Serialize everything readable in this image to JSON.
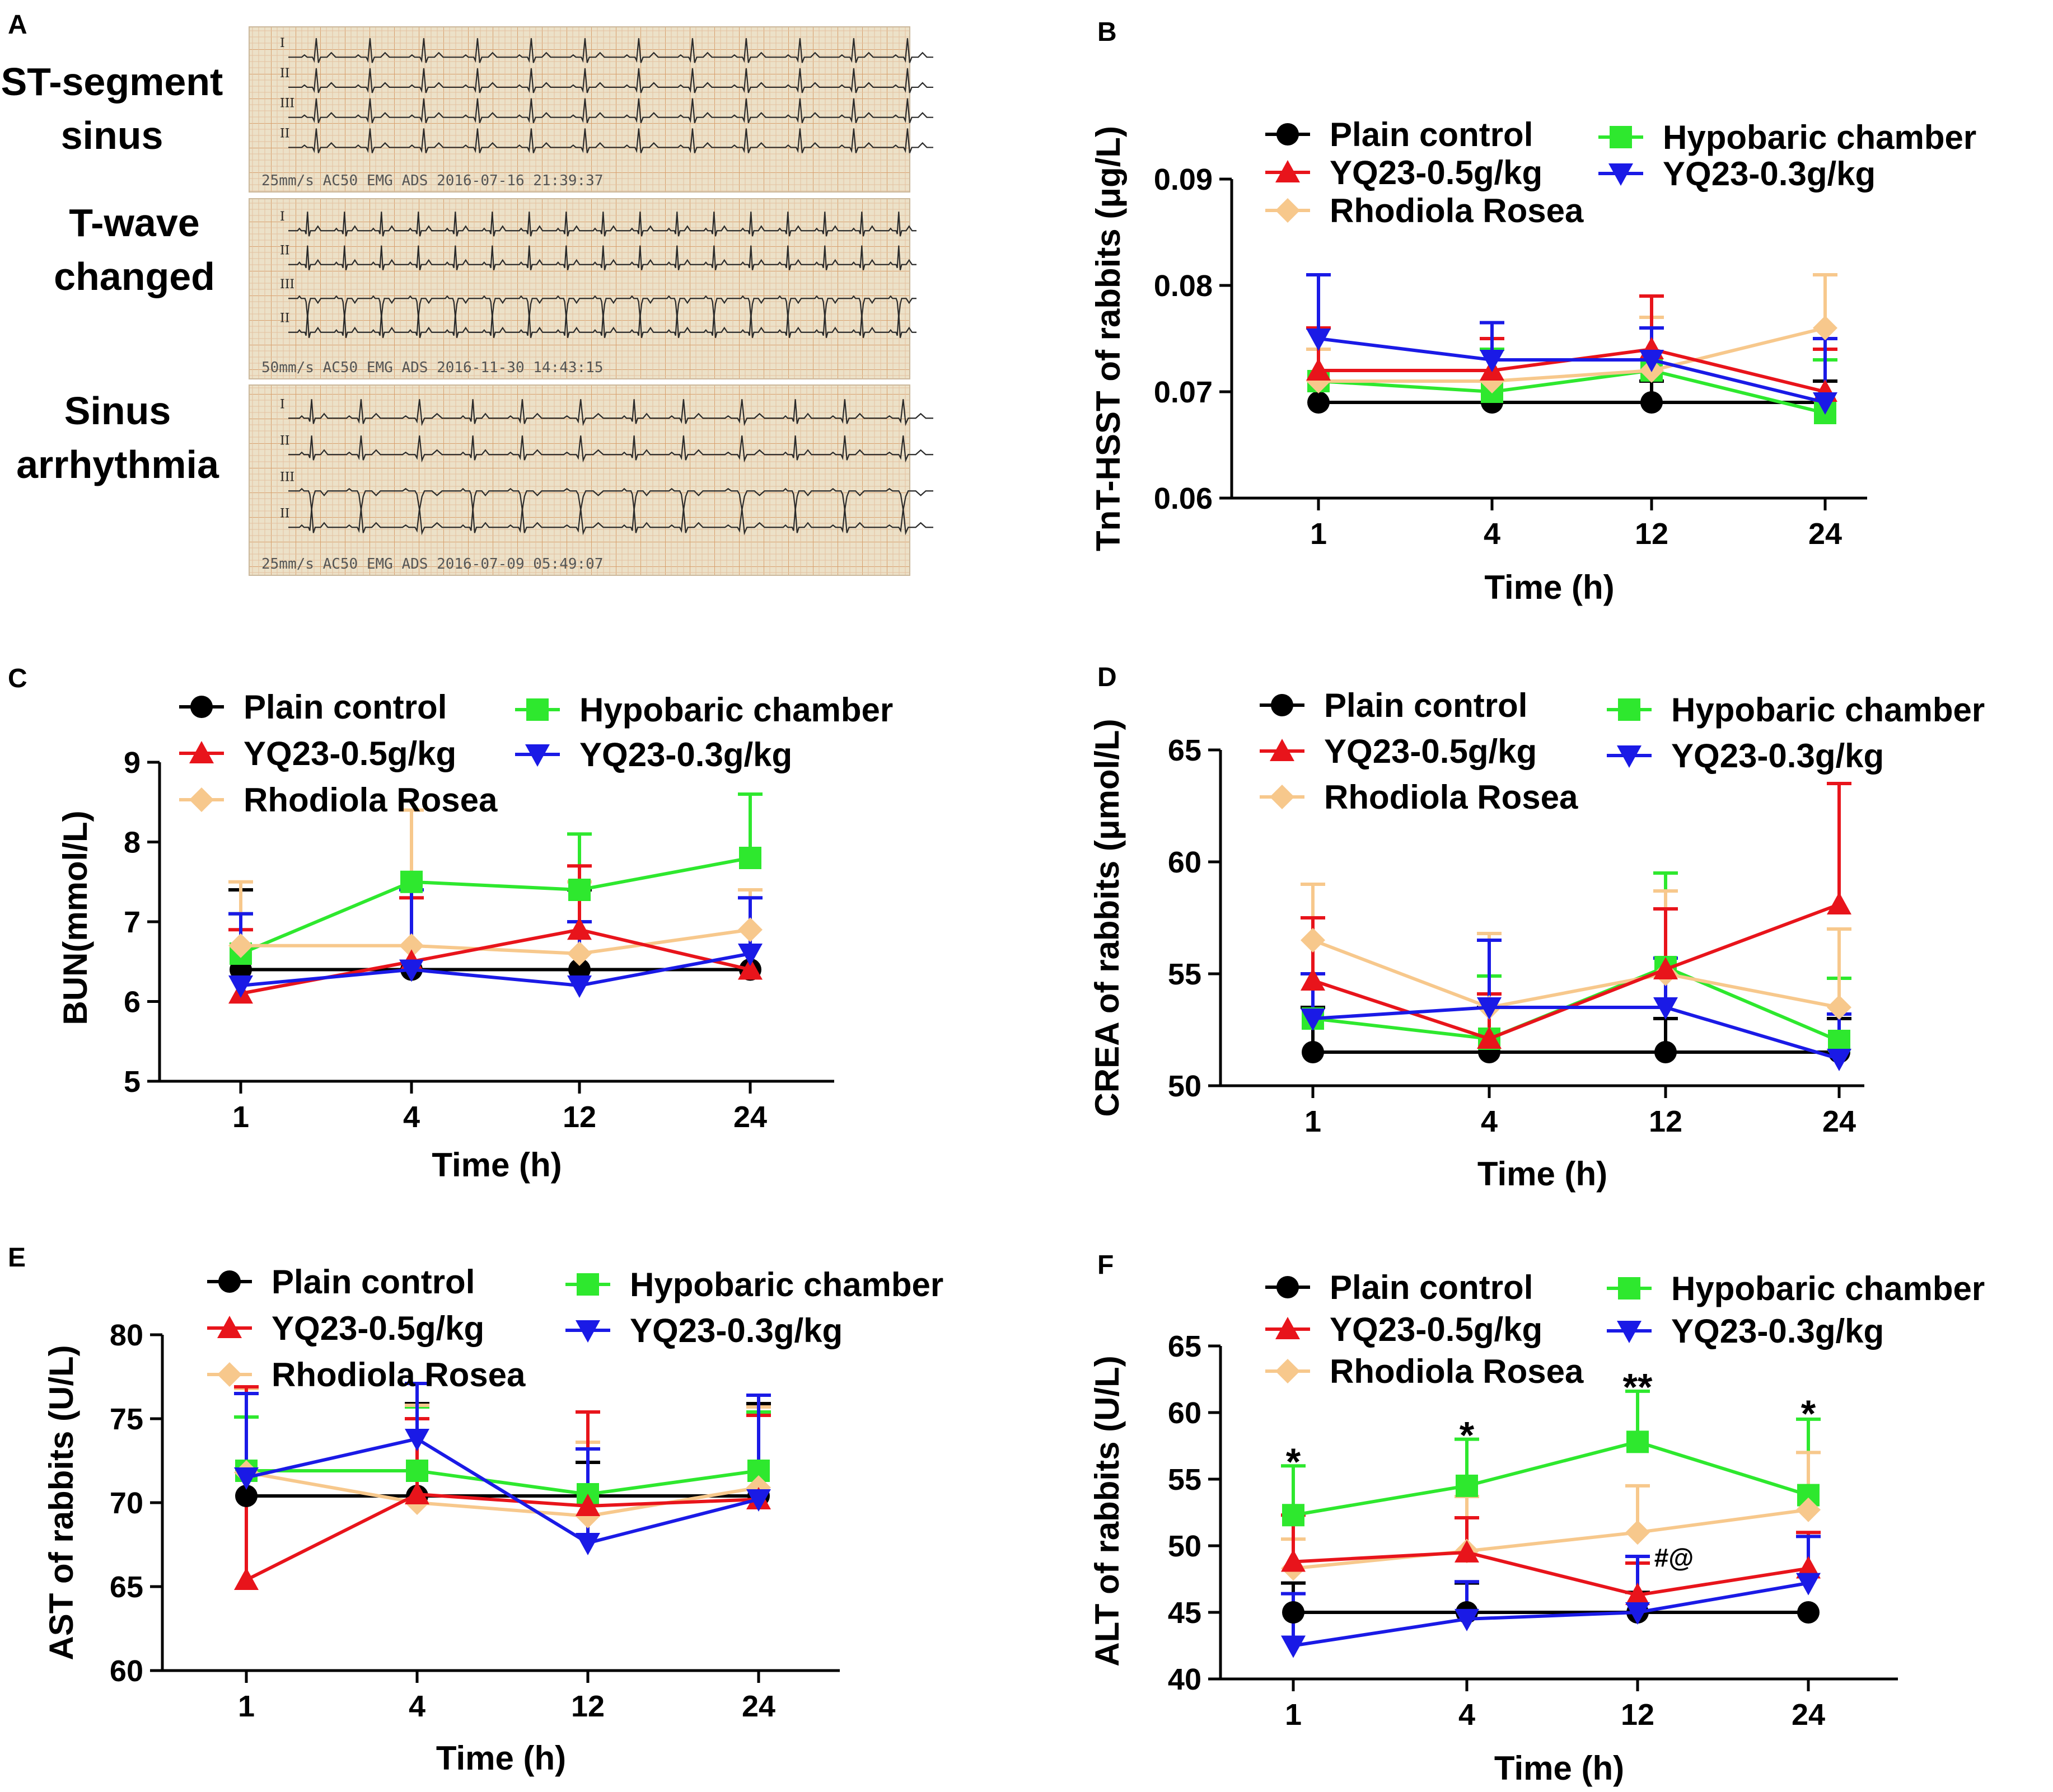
{
  "panels": {
    "A": {
      "label": "A",
      "strips": [
        {
          "label_lines": [
            "ST-segment",
            "sinus"
          ],
          "footer": "25mm/s    AC50  EMG  ADS      2016-07-16 21:39:37"
        },
        {
          "label_lines": [
            "T-wave",
            "changed"
          ],
          "footer": "50mm/s    AC50  EMG  ADS      2016-11-30 14:43:15"
        },
        {
          "label_lines": [
            "Sinus",
            "arrhythmia"
          ],
          "footer": "25mm/s    AC50  EMG  ADS      2016-07-09 05:49:07"
        }
      ],
      "lead_labels": [
        "I",
        "II",
        "III",
        "II"
      ]
    }
  },
  "colors": {
    "Plain control": "#000000",
    "YQ23-0.5g/kg": "#e8141b",
    "Rhodiola Rosea": "#f7c88c",
    "Hypobaric chamber": "#2ee82e",
    "YQ23-0.3g/kg": "#1a1ae6"
  },
  "chart_data": [
    {
      "panel": "B",
      "type": "line",
      "x": [
        "1",
        "4",
        "12",
        "24"
      ],
      "xlabel": "Time (h)",
      "ylabel": "TnT-HSST of rabbits (μg/L)",
      "ylim": [
        0.06,
        0.09
      ],
      "yticks": [
        "0.06",
        "0.07",
        "0.08",
        "0.09"
      ],
      "legend": [
        "Plain control",
        "YQ23-0.5g/kg",
        "Rhodiola Rosea",
        "Hypobaric chamber",
        "YQ23-0.3g/kg"
      ],
      "series": [
        {
          "name": "Plain control",
          "values": [
            0.069,
            0.069,
            0.069,
            0.069
          ],
          "err": [
            0,
            0,
            0.002,
            0.002
          ]
        },
        {
          "name": "YQ23-0.5g/kg",
          "values": [
            0.072,
            0.072,
            0.074,
            0.07
          ],
          "err": [
            0.004,
            0.003,
            0.005,
            0.004
          ]
        },
        {
          "name": "Rhodiola Rosea",
          "values": [
            0.071,
            0.071,
            0.072,
            0.076
          ],
          "err": [
            0.003,
            0.004,
            0.005,
            0.005
          ]
        },
        {
          "name": "Hypobaric chamber",
          "values": [
            0.071,
            0.07,
            0.072,
            0.068
          ],
          "err": [
            0.003,
            0.004,
            0.004,
            0.005
          ]
        },
        {
          "name": "YQ23-0.3g/kg",
          "values": [
            0.075,
            0.073,
            0.073,
            0.069
          ],
          "err": [
            0.006,
            0.0035,
            0.003,
            0.006
          ]
        }
      ],
      "annotations": []
    },
    {
      "panel": "C",
      "type": "line",
      "x": [
        "1",
        "4",
        "12",
        "24"
      ],
      "xlabel": "Time (h)",
      "ylabel": "BUN(mmol/L)",
      "ylim": [
        5,
        9
      ],
      "yticks": [
        "5",
        "6",
        "7",
        "8",
        "9"
      ],
      "legend": [
        "Plain control",
        "YQ23-0.5g/kg",
        "Rhodiola Rosea",
        "Hypobaric chamber",
        "YQ23-0.3g/kg"
      ],
      "series": [
        {
          "name": "Plain control",
          "values": [
            6.4,
            6.4,
            6.4,
            6.4
          ],
          "err": [
            1.0,
            1.0,
            1.0,
            0
          ]
        },
        {
          "name": "YQ23-0.5g/kg",
          "values": [
            6.1,
            6.5,
            6.9,
            6.4
          ],
          "err": [
            0.8,
            0.8,
            0.8,
            0
          ]
        },
        {
          "name": "Rhodiola Rosea",
          "values": [
            6.7,
            6.7,
            6.6,
            6.9
          ],
          "err": [
            0.8,
            1.7,
            0.9,
            0.5
          ]
        },
        {
          "name": "Hypobaric chamber",
          "values": [
            6.6,
            7.5,
            7.4,
            7.8
          ],
          "err": [
            0.5,
            0.9,
            0.7,
            0.8
          ]
        },
        {
          "name": "YQ23-0.3g/kg",
          "values": [
            6.2,
            6.4,
            6.2,
            6.6
          ],
          "err": [
            0.9,
            1.0,
            0.8,
            0.7
          ]
        }
      ],
      "annotations": []
    },
    {
      "panel": "D",
      "type": "line",
      "x": [
        "1",
        "4",
        "12",
        "24"
      ],
      "xlabel": "Time (h)",
      "ylabel": "CREA of rabbits (μmol/L)",
      "ylim": [
        50,
        65
      ],
      "yticks": [
        "50",
        "55",
        "60",
        "65"
      ],
      "legend": [
        "Plain control",
        "YQ23-0.5g/kg",
        "Rhodiola Rosea",
        "Hypobaric chamber",
        "YQ23-0.3g/kg"
      ],
      "series": [
        {
          "name": "Plain control",
          "values": [
            51.5,
            51.5,
            51.5,
            51.5
          ],
          "err": [
            2.0,
            2.0,
            1.5,
            1.5
          ]
        },
        {
          "name": "YQ23-0.5g/kg",
          "values": [
            54.7,
            52.1,
            55.2,
            58.1
          ],
          "err": [
            2.8,
            2.0,
            2.7,
            5.4
          ]
        },
        {
          "name": "Rhodiola Rosea",
          "values": [
            56.5,
            53.5,
            55.0,
            53.5
          ],
          "err": [
            2.5,
            3.3,
            3.7,
            3.5
          ]
        },
        {
          "name": "Hypobaric chamber",
          "values": [
            53.0,
            52.1,
            55.3,
            52.0
          ],
          "err": [
            2.0,
            2.8,
            4.2,
            2.8
          ]
        },
        {
          "name": "YQ23-0.3g/kg",
          "values": [
            53.0,
            53.5,
            53.5,
            51.2
          ],
          "err": [
            2.0,
            3.0,
            2.2,
            2.0
          ]
        }
      ],
      "annotations": []
    },
    {
      "panel": "E",
      "type": "line",
      "x": [
        "1",
        "4",
        "12",
        "24"
      ],
      "xlabel": "Time (h)",
      "ylabel": "AST of rabbits (U/L)",
      "ylim": [
        60,
        80
      ],
      "yticks": [
        "60",
        "65",
        "70",
        "75",
        "80"
      ],
      "legend": [
        "Plain control",
        "YQ23-0.5g/kg",
        "Rhodiola Rosea",
        "Hypobaric chamber",
        "YQ23-0.3g/kg"
      ],
      "series": [
        {
          "name": "Plain control",
          "values": [
            70.4,
            70.4,
            70.4,
            70.4
          ],
          "err": [
            6.5,
            5.5,
            2.0,
            5.5
          ]
        },
        {
          "name": "YQ23-0.5g/kg",
          "values": [
            65.4,
            70.5,
            69.8,
            70.2
          ],
          "err": [
            11.5,
            4.5,
            5.6,
            5.0
          ]
        },
        {
          "name": "Rhodiola Rosea",
          "values": [
            71.8,
            70.0,
            69.2,
            70.9
          ],
          "err": [
            5.0,
            5.8,
            4.4,
            4.8
          ]
        },
        {
          "name": "Hypobaric chamber",
          "values": [
            71.9,
            71.9,
            70.5,
            71.9
          ],
          "err": [
            3.2,
            3.8,
            3.1,
            3.5
          ]
        },
        {
          "name": "YQ23-0.3g/kg",
          "values": [
            71.5,
            73.8,
            67.6,
            70.2
          ],
          "err": [
            5.0,
            3.3,
            5.6,
            6.2
          ]
        }
      ],
      "annotations": []
    },
    {
      "panel": "F",
      "type": "line",
      "x": [
        "1",
        "4",
        "12",
        "24"
      ],
      "xlabel": "Time (h)",
      "ylabel": "ALT of rabbits (U/L)",
      "ylim": [
        40,
        65
      ],
      "yticks": [
        "40",
        "45",
        "50",
        "55",
        "60",
        "65"
      ],
      "legend": [
        "Plain control",
        "YQ23-0.5g/kg",
        "Rhodiola Rosea",
        "Hypobaric chamber",
        "YQ23-0.3g/kg"
      ],
      "series": [
        {
          "name": "Plain control",
          "values": [
            45.0,
            45.0,
            45.0,
            45.0
          ],
          "err": [
            2.2,
            2.2,
            1.5,
            0
          ]
        },
        {
          "name": "YQ23-0.5g/kg",
          "values": [
            48.8,
            49.5,
            46.3,
            48.3
          ],
          "err": [
            3.5,
            2.6,
            2.4,
            2.7
          ]
        },
        {
          "name": "Rhodiola Rosea",
          "values": [
            48.3,
            49.6,
            51.0,
            52.7
          ],
          "err": [
            2.2,
            4.1,
            3.5,
            4.3
          ]
        },
        {
          "name": "Hypobaric chamber",
          "values": [
            52.3,
            54.5,
            57.8,
            53.8
          ],
          "err": [
            3.7,
            3.5,
            3.8,
            5.7
          ]
        },
        {
          "name": "YQ23-0.3g/kg",
          "values": [
            42.5,
            44.5,
            45.0,
            47.2
          ],
          "err": [
            3.9,
            2.8,
            4.2,
            3.5
          ]
        }
      ],
      "annotations": [
        {
          "text": "*",
          "x": "1",
          "y": 56.6
        },
        {
          "text": "*",
          "x": "4",
          "y": 58.6
        },
        {
          "text": "**",
          "x": "12",
          "y": 62.2
        },
        {
          "text": "*",
          "x": "24",
          "y": 60.2
        },
        {
          "text": "#@",
          "x": "12",
          "y": 49.2
        }
      ]
    }
  ]
}
